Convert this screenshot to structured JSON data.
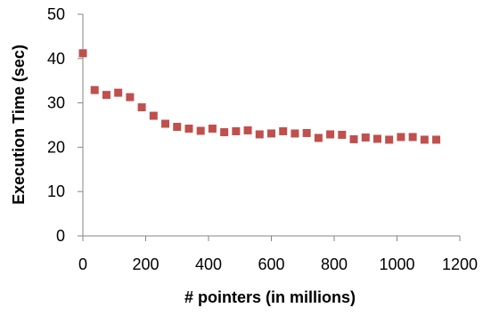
{
  "chart_data": {
    "type": "scatter",
    "title": "",
    "xlabel": "# pointers (in millions)",
    "ylabel": "Execution Time (sec)",
    "xlim": [
      0,
      1200
    ],
    "ylim": [
      0,
      50
    ],
    "x_ticks": [
      0,
      200,
      400,
      600,
      800,
      1000,
      1200
    ],
    "y_ticks": [
      0,
      10,
      20,
      30,
      40,
      50
    ],
    "grid": false,
    "legend": "none",
    "marker": "square",
    "colors": {
      "marker": "#c0504d",
      "axis": "#868686",
      "text": "#000000"
    },
    "series": [
      {
        "x": [
          0,
          37.5,
          75,
          112.5,
          150,
          187.5,
          225,
          262.5,
          300,
          337.5,
          375,
          412.5,
          450,
          487.5,
          525,
          562.5,
          600,
          637.5,
          675,
          712.5,
          750,
          787.5,
          825,
          862.5,
          900,
          937.5,
          975,
          1012.5,
          1050,
          1087.5,
          1125
        ],
        "y": [
          41.2,
          32.9,
          31.8,
          32.3,
          31.3,
          29.0,
          27.1,
          25.3,
          24.6,
          24.2,
          23.7,
          24.2,
          23.4,
          23.6,
          23.8,
          22.9,
          23.1,
          23.6,
          23.1,
          23.2,
          22.1,
          22.9,
          22.8,
          21.8,
          22.2,
          21.9,
          21.7,
          22.3,
          22.3,
          21.7,
          21.7
        ]
      }
    ]
  }
}
